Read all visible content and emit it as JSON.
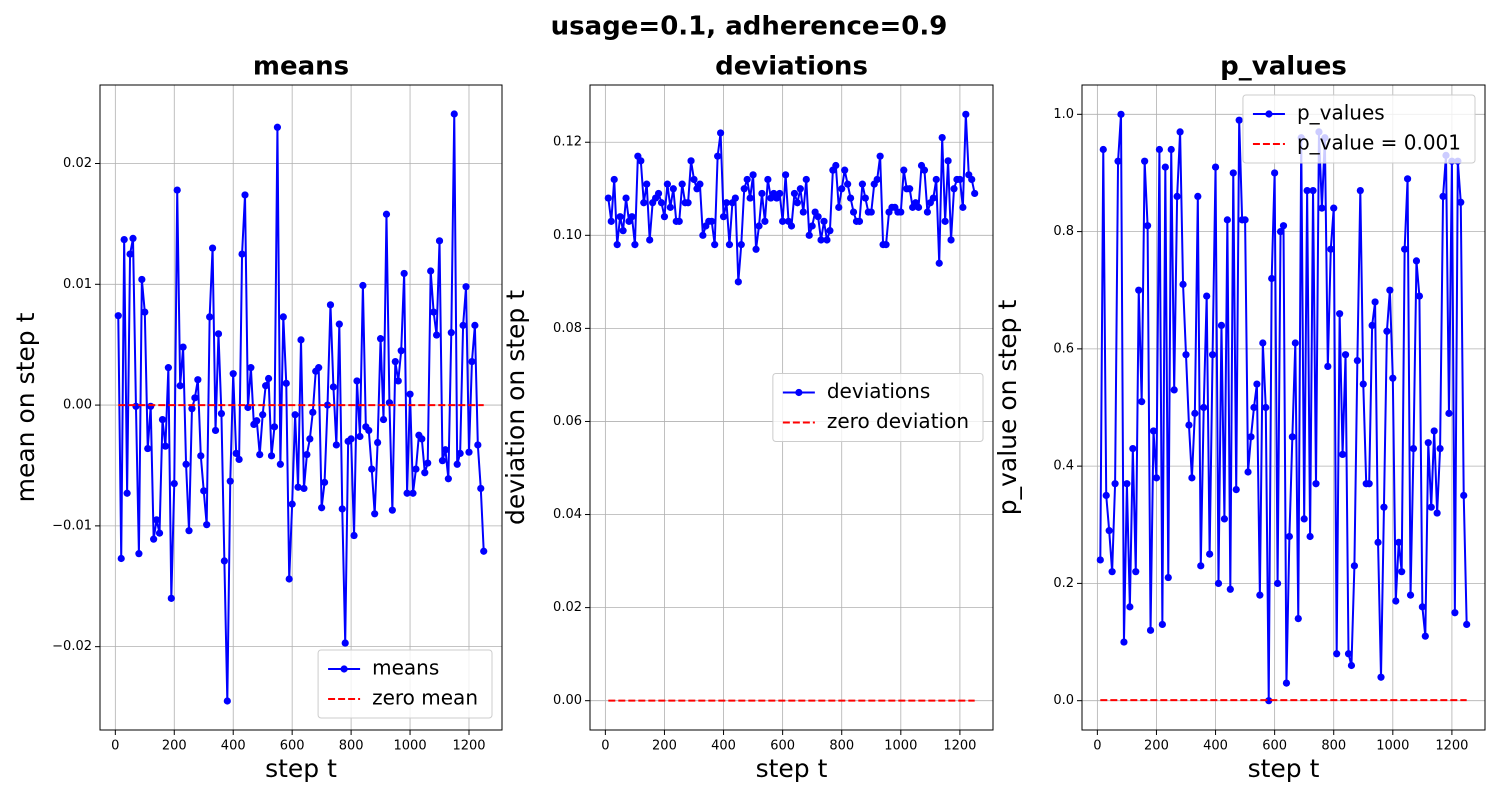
{
  "figure_title": "usage=0.1, adherence=0.9",
  "chart_data": [
    {
      "type": "line",
      "title": "means",
      "xlabel": "step t",
      "ylabel": "mean on step t",
      "x": [
        10,
        20,
        30,
        40,
        50,
        60,
        70,
        80,
        90,
        100,
        110,
        120,
        130,
        140,
        150,
        160,
        170,
        180,
        190,
        200,
        210,
        220,
        230,
        240,
        250,
        260,
        270,
        280,
        290,
        300,
        310,
        320,
        330,
        340,
        350,
        360,
        370,
        380,
        390,
        400,
        410,
        420,
        430,
        440,
        450,
        460,
        470,
        480,
        490,
        500,
        510,
        520,
        530,
        540,
        550,
        560,
        570,
        580,
        590,
        600,
        610,
        620,
        630,
        640,
        650,
        660,
        670,
        680,
        690,
        700,
        710,
        720,
        730,
        740,
        750,
        760,
        770,
        780,
        790,
        800,
        810,
        820,
        830,
        840,
        850,
        860,
        870,
        880,
        890,
        900,
        910,
        920,
        930,
        940,
        950,
        960,
        970,
        980,
        990,
        1000,
        1010,
        1020,
        1030,
        1040,
        1050,
        1060,
        1070,
        1080,
        1090,
        1100,
        1110,
        1120,
        1130,
        1140,
        1150,
        1160,
        1170,
        1180,
        1190,
        1200,
        1210,
        1220,
        1230,
        1240,
        1250
      ],
      "series": [
        {
          "name": "means",
          "color": "#0000ff",
          "linestyle": "solid",
          "marker": "o",
          "values": [
            0.0074,
            -0.0127,
            0.0137,
            -0.0073,
            0.0125,
            0.0138,
            -0.0001,
            -0.0123,
            0.0104,
            0.0077,
            -0.0036,
            -0.0001,
            -0.0111,
            -0.0095,
            -0.0106,
            -0.0012,
            -0.0034,
            0.0031,
            -0.016,
            -0.0065,
            0.0178,
            0.0016,
            0.0048,
            -0.0049,
            -0.0104,
            -0.0003,
            0.0006,
            0.0021,
            -0.0042,
            -0.0071,
            -0.0099,
            0.0073,
            0.013,
            -0.0021,
            0.0059,
            -0.0007,
            -0.0129,
            -0.0245,
            -0.0063,
            0.0026,
            -0.004,
            -0.0045,
            0.0125,
            0.0174,
            -0.0002,
            0.0031,
            -0.0016,
            -0.0013,
            -0.0041,
            -0.0008,
            0.0016,
            0.0022,
            -0.0042,
            -0.0018,
            0.023,
            -0.0049,
            0.0073,
            0.0018,
            -0.0144,
            -0.0082,
            -0.0008,
            -0.0068,
            0.0054,
            -0.0069,
            -0.0041,
            -0.0028,
            -0.0006,
            0.0028,
            0.0031,
            -0.0085,
            -0.0064,
            0.0,
            0.0083,
            0.0015,
            -0.0033,
            0.0067,
            -0.0086,
            -0.0197,
            -0.003,
            -0.0028,
            -0.0108,
            0.002,
            -0.0026,
            0.0099,
            -0.0018,
            -0.0021,
            -0.0053,
            -0.009,
            -0.0031,
            0.0055,
            -0.0012,
            0.0158,
            0.0002,
            -0.0087,
            0.0036,
            0.002,
            0.0045,
            0.0109,
            -0.0073,
            0.0009,
            -0.0073,
            -0.0053,
            -0.0025,
            -0.0028,
            -0.0056,
            -0.0048,
            0.0111,
            0.0077,
            0.0058,
            0.0136,
            -0.0046,
            -0.0037,
            -0.0061,
            0.006,
            0.0241,
            -0.0049,
            -0.004,
            0.0066,
            0.0098,
            -0.0039,
            0.0036,
            0.0066,
            -0.0033,
            -0.0069,
            -0.0121
          ]
        },
        {
          "name": "zero mean",
          "color": "#ff0000",
          "linestyle": "dashed",
          "x": [
            10,
            1250
          ],
          "values": [
            0,
            0
          ]
        }
      ],
      "xlim": [
        -52,
        1312
      ],
      "ylim": [
        -0.0269,
        0.0265
      ],
      "xticks": [
        0,
        200,
        400,
        600,
        800,
        1000,
        1200
      ],
      "yticks": [
        {
          "value": -0.02,
          "label": "−0.02"
        },
        {
          "value": -0.01,
          "label": "−0.01"
        },
        {
          "value": 0,
          "label": "0.00"
        },
        {
          "value": 0.01,
          "label": "0.01"
        },
        {
          "value": 0.02,
          "label": "0.02"
        }
      ],
      "grid": true,
      "legend": "lower right"
    },
    {
      "type": "line",
      "title": "deviations",
      "xlabel": "step t",
      "ylabel": "deviation on step t",
      "x": [
        10,
        20,
        30,
        40,
        50,
        60,
        70,
        80,
        90,
        100,
        110,
        120,
        130,
        140,
        150,
        160,
        170,
        180,
        190,
        200,
        210,
        220,
        230,
        240,
        250,
        260,
        270,
        280,
        290,
        300,
        310,
        320,
        330,
        340,
        350,
        360,
        370,
        380,
        390,
        400,
        410,
        420,
        430,
        440,
        450,
        460,
        470,
        480,
        490,
        500,
        510,
        520,
        530,
        540,
        550,
        560,
        570,
        580,
        590,
        600,
        610,
        620,
        630,
        640,
        650,
        660,
        670,
        680,
        690,
        700,
        710,
        720,
        730,
        740,
        750,
        760,
        770,
        780,
        790,
        800,
        810,
        820,
        830,
        840,
        850,
        860,
        870,
        880,
        890,
        900,
        910,
        920,
        930,
        940,
        950,
        960,
        970,
        980,
        990,
        1000,
        1010,
        1020,
        1030,
        1040,
        1050,
        1060,
        1070,
        1080,
        1090,
        1100,
        1110,
        1120,
        1130,
        1140,
        1150,
        1160,
        1170,
        1180,
        1190,
        1200,
        1210,
        1220,
        1230,
        1240,
        1250
      ],
      "series": [
        {
          "name": "deviations",
          "color": "#0000ff",
          "linestyle": "solid",
          "marker": "o",
          "values": [
            0.108,
            0.103,
            0.112,
            0.098,
            0.104,
            0.101,
            0.108,
            0.103,
            0.104,
            0.098,
            0.117,
            0.116,
            0.107,
            0.111,
            0.099,
            0.107,
            0.108,
            0.109,
            0.107,
            0.104,
            0.111,
            0.106,
            0.11,
            0.103,
            0.103,
            0.111,
            0.107,
            0.107,
            0.116,
            0.112,
            0.11,
            0.111,
            0.1,
            0.102,
            0.103,
            0.103,
            0.098,
            0.117,
            0.122,
            0.104,
            0.107,
            0.098,
            0.107,
            0.108,
            0.09,
            0.098,
            0.11,
            0.112,
            0.108,
            0.113,
            0.097,
            0.102,
            0.109,
            0.103,
            0.112,
            0.108,
            0.109,
            0.108,
            0.109,
            0.103,
            0.113,
            0.103,
            0.102,
            0.109,
            0.107,
            0.11,
            0.105,
            0.112,
            0.1,
            0.102,
            0.105,
            0.104,
            0.099,
            0.103,
            0.099,
            0.101,
            0.114,
            0.115,
            0.106,
            0.11,
            0.114,
            0.111,
            0.108,
            0.105,
            0.103,
            0.103,
            0.111,
            0.108,
            0.105,
            0.105,
            0.111,
            0.112,
            0.117,
            0.098,
            0.098,
            0.105,
            0.106,
            0.106,
            0.105,
            0.105,
            0.114,
            0.11,
            0.11,
            0.106,
            0.107,
            0.106,
            0.115,
            0.114,
            0.105,
            0.107,
            0.108,
            0.112,
            0.094,
            0.121,
            0.103,
            0.116,
            0.099,
            0.11,
            0.112,
            0.112,
            0.106,
            0.126,
            0.113,
            0.112,
            0.109
          ]
        },
        {
          "name": "zero deviation",
          "color": "#ff0000",
          "linestyle": "dashed",
          "x": [
            10,
            1250
          ],
          "values": [
            0,
            0
          ]
        }
      ],
      "xlim": [
        -52,
        1312
      ],
      "ylim": [
        -0.0063,
        0.1323
      ],
      "xticks": [
        0,
        200,
        400,
        600,
        800,
        1000,
        1200
      ],
      "yticks": [
        {
          "value": 0,
          "label": "0.00"
        },
        0.02,
        0.04,
        0.06,
        0.08,
        {
          "value": 0.1,
          "label": "0.10"
        },
        0.12
      ],
      "grid": true,
      "legend": "center right"
    },
    {
      "type": "line",
      "title": "p_values",
      "xlabel": "step t",
      "ylabel": "p_value on step t",
      "x": [
        10,
        20,
        30,
        40,
        50,
        60,
        70,
        80,
        90,
        100,
        110,
        120,
        130,
        140,
        150,
        160,
        170,
        180,
        190,
        200,
        210,
        220,
        230,
        240,
        250,
        260,
        270,
        280,
        290,
        300,
        310,
        320,
        330,
        340,
        350,
        360,
        370,
        380,
        390,
        400,
        410,
        420,
        430,
        440,
        450,
        460,
        470,
        480,
        490,
        500,
        510,
        520,
        530,
        540,
        550,
        560,
        570,
        580,
        590,
        600,
        610,
        620,
        630,
        640,
        650,
        660,
        670,
        680,
        690,
        700,
        710,
        720,
        730,
        740,
        750,
        760,
        770,
        780,
        790,
        800,
        810,
        820,
        830,
        840,
        850,
        860,
        870,
        880,
        890,
        900,
        910,
        920,
        930,
        940,
        950,
        960,
        970,
        980,
        990,
        1000,
        1010,
        1020,
        1030,
        1040,
        1050,
        1060,
        1070,
        1080,
        1090,
        1100,
        1110,
        1120,
        1130,
        1140,
        1150,
        1160,
        1170,
        1180,
        1190,
        1200,
        1210,
        1220,
        1230,
        1240,
        1250
      ],
      "series": [
        {
          "name": "p_values",
          "color": "#0000ff",
          "linestyle": "solid",
          "marker": "o",
          "values": [
            0.24,
            0.94,
            0.35,
            0.29,
            0.22,
            0.37,
            0.92,
            1.0,
            0.1,
            0.37,
            0.16,
            0.43,
            0.22,
            0.7,
            0.51,
            0.92,
            0.81,
            0.12,
            0.46,
            0.38,
            0.94,
            0.13,
            0.91,
            0.21,
            0.94,
            0.53,
            0.86,
            0.97,
            0.71,
            0.59,
            0.47,
            0.38,
            0.49,
            0.86,
            0.23,
            0.5,
            0.69,
            0.25,
            0.59,
            0.91,
            0.2,
            0.64,
            0.31,
            0.82,
            0.19,
            0.9,
            0.36,
            0.99,
            0.82,
            0.82,
            0.39,
            0.45,
            0.5,
            0.54,
            0.18,
            0.61,
            0.5,
            0.0,
            0.72,
            0.9,
            0.2,
            0.8,
            0.81,
            0.03,
            0.28,
            0.45,
            0.61,
            0.14,
            0.96,
            0.31,
            0.87,
            0.28,
            0.87,
            0.37,
            0.97,
            0.84,
            0.96,
            0.57,
            0.77,
            0.84,
            0.08,
            0.66,
            0.42,
            0.59,
            0.08,
            0.06,
            0.23,
            0.58,
            0.87,
            0.54,
            0.37,
            0.37,
            0.64,
            0.68,
            0.27,
            0.04,
            0.33,
            0.63,
            0.7,
            0.55,
            0.17,
            0.27,
            0.22,
            0.77,
            0.89,
            0.18,
            0.43,
            0.75,
            0.69,
            0.16,
            0.11,
            0.44,
            0.33,
            0.46,
            0.32,
            0.43,
            0.86,
            0.93,
            0.49,
            0.92,
            0.15,
            0.92,
            0.85,
            0.35,
            0.13
          ]
        },
        {
          "name": "p_value = 0.001",
          "color": "#ff0000",
          "linestyle": "dashed",
          "x": [
            10,
            1250
          ],
          "values": [
            0.001,
            0.001
          ]
        }
      ],
      "xlim": [
        -52,
        1312
      ],
      "ylim": [
        -0.05,
        1.05
      ],
      "xticks": [
        0,
        200,
        400,
        600,
        800,
        1000,
        1200
      ],
      "yticks": [
        {
          "value": 0,
          "label": "0.0"
        },
        0.2,
        0.4,
        0.6,
        0.8,
        {
          "value": 1,
          "label": "1.0"
        }
      ],
      "grid": true,
      "legend": "upper right"
    }
  ]
}
